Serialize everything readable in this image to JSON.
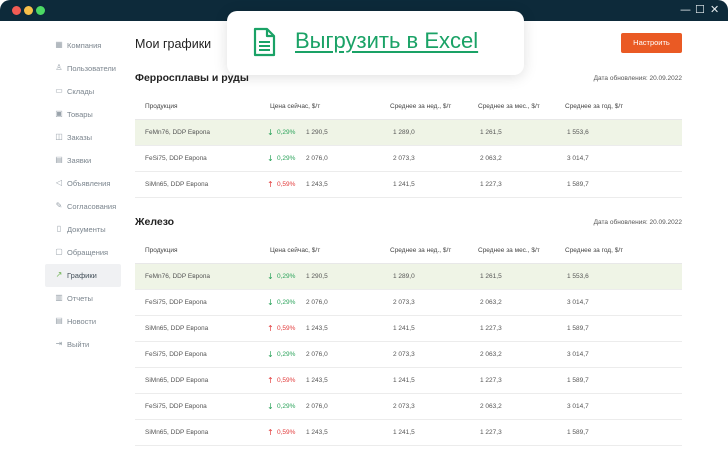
{
  "window": {
    "controls": {
      "minimize": "—",
      "maximize": "☐",
      "close": "✕"
    }
  },
  "sidebar": {
    "items": [
      {
        "label": "Компания",
        "icon": "building-icon",
        "glyph": "▦"
      },
      {
        "label": "Пользователи",
        "icon": "users-icon",
        "glyph": "♙"
      },
      {
        "label": "Склады",
        "icon": "warehouse-icon",
        "glyph": "▭"
      },
      {
        "label": "Товары",
        "icon": "box-icon",
        "glyph": "▣"
      },
      {
        "label": "Заказы",
        "icon": "cart-icon",
        "glyph": "◫"
      },
      {
        "label": "Заявки",
        "icon": "request-icon",
        "glyph": "▤"
      },
      {
        "label": "Объявления",
        "icon": "megaphone-icon",
        "glyph": "◁"
      },
      {
        "label": "Согласования",
        "icon": "pen-icon",
        "glyph": "✎"
      },
      {
        "label": "Документы",
        "icon": "document-icon",
        "glyph": "▯"
      },
      {
        "label": "Обращения",
        "icon": "chat-icon",
        "glyph": "▢"
      },
      {
        "label": "Графики",
        "icon": "chart-icon",
        "glyph": "↗",
        "active": true
      },
      {
        "label": "Отчеты",
        "icon": "report-icon",
        "glyph": "▥"
      },
      {
        "label": "Новости",
        "icon": "news-icon",
        "glyph": "▤"
      },
      {
        "label": "Выйти",
        "icon": "logout-icon",
        "glyph": "⇥"
      }
    ]
  },
  "page": {
    "title": "Мои графики",
    "settings_label": "Настроить"
  },
  "popup": {
    "label": "Выгрузить в Excel",
    "icon": "document-icon",
    "accent": "#1aa266"
  },
  "accent": {
    "orange": "#ea5a24",
    "green": "#2aa35a",
    "red": "#e23b3b",
    "highlight": "#eff4e6"
  },
  "columns": [
    "Продукция",
    "Цена сейчас, $/т",
    "Среднее за нед., $/т",
    "Среднее за мес., $/т",
    "Среднее за год, $/т"
  ],
  "sections": [
    {
      "title": "Ферросплавы и руды",
      "updated": "Дата обновления: 20.09.2022",
      "rows": [
        {
          "product": "FeMn76, DDP Европа",
          "dir": "down",
          "pct": "0,29%",
          "price": "1 290,5",
          "week": "1 289,0",
          "month": "1 261,5",
          "year": "1 553,6",
          "highlight": true
        },
        {
          "product": "FeSi75, DDP Европа",
          "dir": "down",
          "pct": "0,29%",
          "price": "2 076,0",
          "week": "2 073,3",
          "month": "2 063,2",
          "year": "3 014,7"
        },
        {
          "product": "SiMn65, DDP Европа",
          "dir": "up",
          "pct": "0,59%",
          "price": "1 243,5",
          "week": "1 241,5",
          "month": "1 227,3",
          "year": "1 589,7"
        }
      ]
    },
    {
      "title": "Железо",
      "updated": "Дата обновления: 20.09.2022",
      "rows": [
        {
          "product": "FeMn76, DDP Европа",
          "dir": "down",
          "pct": "0,29%",
          "price": "1 290,5",
          "week": "1 289,0",
          "month": "1 261,5",
          "year": "1 553,6",
          "highlight": true
        },
        {
          "product": "FeSi75, DDP Европа",
          "dir": "down",
          "pct": "0,29%",
          "price": "2 076,0",
          "week": "2 073,3",
          "month": "2 063,2",
          "year": "3 014,7"
        },
        {
          "product": "SiMn65, DDP Европа",
          "dir": "up",
          "pct": "0,59%",
          "price": "1 243,5",
          "week": "1 241,5",
          "month": "1 227,3",
          "year": "1 589,7"
        },
        {
          "product": "FeSi75, DDP Европа",
          "dir": "down",
          "pct": "0,29%",
          "price": "2 076,0",
          "week": "2 073,3",
          "month": "2 063,2",
          "year": "3 014,7"
        },
        {
          "product": "SiMn65, DDP Европа",
          "dir": "up",
          "pct": "0,59%",
          "price": "1 243,5",
          "week": "1 241,5",
          "month": "1 227,3",
          "year": "1 589,7"
        },
        {
          "product": "FeSi75, DDP Европа",
          "dir": "down",
          "pct": "0,29%",
          "price": "2 076,0",
          "week": "2 073,3",
          "month": "2 063,2",
          "year": "3 014,7"
        },
        {
          "product": "SiMn65, DDP Европа",
          "dir": "up",
          "pct": "0,59%",
          "price": "1 243,5",
          "week": "1 241,5",
          "month": "1 227,3",
          "year": "1 589,7"
        }
      ]
    }
  ]
}
